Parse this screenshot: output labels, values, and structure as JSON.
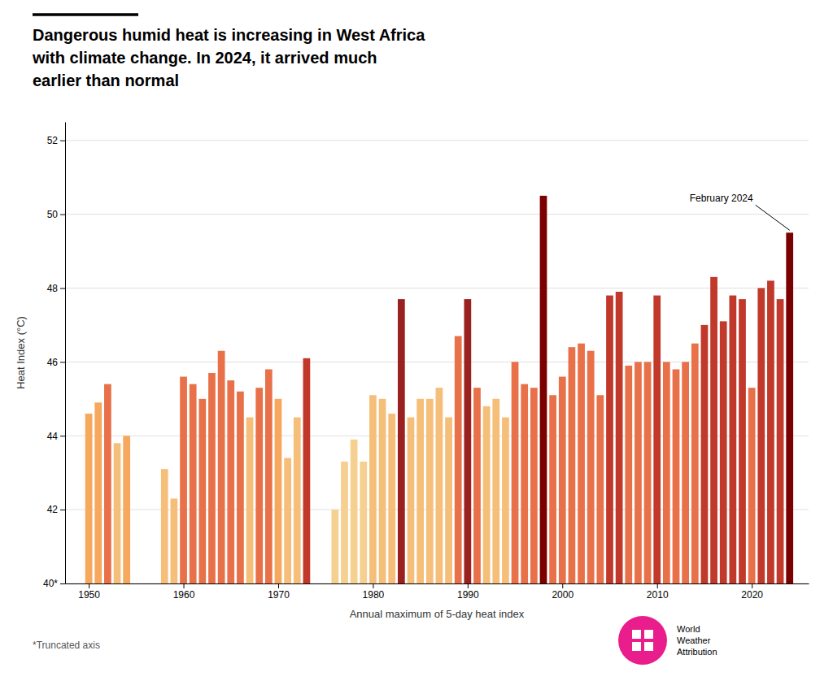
{
  "chart_data": {
    "type": "bar",
    "title": "Dangerous humid heat is increasing in West Africa\nwith climate change. In 2024, it arrived much\nearlier than normal",
    "xlabel": "Annual maximum of 5-day heat index",
    "ylabel": "Heat Index (°C)",
    "annotations": [
      {
        "text": "February 2024",
        "x": 2024
      }
    ],
    "note": "*Truncated axis",
    "source": "World\nWeather\nAttribution",
    "x": [
      1950,
      1951,
      1952,
      1953,
      1954,
      1958,
      1959,
      1960,
      1961,
      1962,
      1963,
      1964,
      1965,
      1966,
      1967,
      1968,
      1969,
      1970,
      1971,
      1972,
      1973,
      1976,
      1977,
      1978,
      1979,
      1980,
      1981,
      1982,
      1983,
      1984,
      1985,
      1986,
      1987,
      1988,
      1989,
      1990,
      1991,
      1992,
      1993,
      1994,
      1995,
      1996,
      1997,
      1998,
      1999,
      2000,
      2001,
      2002,
      2003,
      2004,
      2005,
      2006,
      2007,
      2008,
      2009,
      2010,
      2011,
      2012,
      2013,
      2014,
      2015,
      2016,
      2017,
      2018,
      2019,
      2020,
      2021,
      2022,
      2023,
      2024
    ],
    "values": [
      44.6,
      44.9,
      45.4,
      43.8,
      44.0,
      43.1,
      42.3,
      45.6,
      45.4,
      45.0,
      45.7,
      46.3,
      45.5,
      45.2,
      44.5,
      45.3,
      45.8,
      45.0,
      43.4,
      44.5,
      46.1,
      42.0,
      43.3,
      43.9,
      43.3,
      45.1,
      45.0,
      44.6,
      47.7,
      44.5,
      45.0,
      45.0,
      45.3,
      44.5,
      46.7,
      47.7,
      45.3,
      44.8,
      45.0,
      44.5,
      46.0,
      45.4,
      45.3,
      50.5,
      45.1,
      45.6,
      46.4,
      46.5,
      46.3,
      45.1,
      47.8,
      47.9,
      45.9,
      46.0,
      46.0,
      47.8,
      46.0,
      45.8,
      46.0,
      46.5,
      47.0,
      48.3,
      47.1,
      47.8,
      47.7,
      45.3,
      48.0,
      48.2,
      47.7,
      49.5
    ],
    "colors": [
      "#f5a85e",
      "#f5a85e",
      "#e8714a",
      "#f5bf7a",
      "#f5a85e",
      "#f5bf7a",
      "#f5bf7a",
      "#e8714a",
      "#e8714a",
      "#e8714a",
      "#e8714a",
      "#e8714a",
      "#e8714a",
      "#e8714a",
      "#f5bf7a",
      "#e8714a",
      "#e8714a",
      "#f5a85e",
      "#f5bf7a",
      "#f5bf7a",
      "#c0392b",
      "#f5d090",
      "#f5d090",
      "#f5d090",
      "#f5d090",
      "#f5bf7a",
      "#f5bf7a",
      "#f5bf7a",
      "#9b2020",
      "#f5bf7a",
      "#f5bf7a",
      "#f5bf7a",
      "#f5bf7a",
      "#f5bf7a",
      "#e8714a",
      "#9b2020",
      "#e8714a",
      "#f5bf7a",
      "#f5bf7a",
      "#f5bf7a",
      "#e8714a",
      "#e8714a",
      "#e8714a",
      "#7b0000",
      "#e8714a",
      "#e8714a",
      "#e8714a",
      "#e8714a",
      "#e8714a",
      "#e8714a",
      "#c0392b",
      "#c0392b",
      "#e8714a",
      "#e8714a",
      "#e8714a",
      "#c0392b",
      "#e8714a",
      "#e8714a",
      "#e8714a",
      "#e8714a",
      "#c0392b",
      "#c0392b",
      "#c0392b",
      "#c0392b",
      "#c0392b",
      "#e8714a",
      "#c0392b",
      "#c0392b",
      "#c0392b",
      "#7b0000"
    ],
    "xlim": [
      1947.5,
      2026
    ],
    "xticks": [
      1950,
      1960,
      1970,
      1980,
      1990,
      2000,
      2010,
      2020
    ],
    "ylim": [
      40,
      52.5
    ],
    "yticks": [
      {
        "value": 40,
        "label": "40*"
      },
      42,
      44,
      46,
      48,
      50,
      52
    ],
    "grid": true
  }
}
